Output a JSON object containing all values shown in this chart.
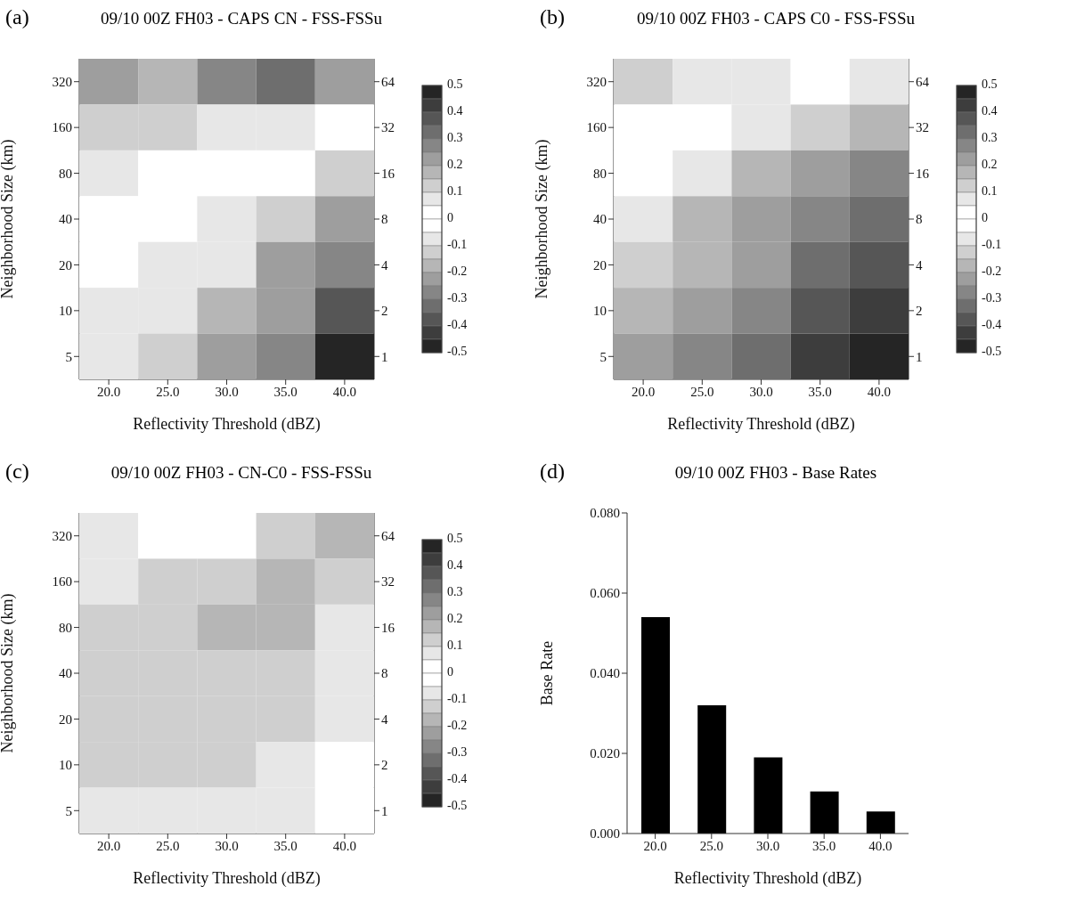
{
  "chart_data": [
    {
      "type": "heatmap",
      "annotations": [
        "(a)"
      ],
      "title": "09/10 00Z FH03 - CAPS CN - FSS-FSSu",
      "xlabel": "Reflectivity Threshold (dBZ)",
      "ylabel": "Neighborhood Size (km)",
      "categories": [
        "20.0",
        "25.0",
        "30.0",
        "35.0",
        "40.0"
      ],
      "y_categories": [
        "320",
        "160",
        "80",
        "40",
        "20",
        "10",
        "5"
      ],
      "y2_categories": [
        "64",
        "32",
        "16",
        "8",
        "4",
        "2",
        "1"
      ],
      "cells": [
        [
          0.22,
          0.2,
          0.25,
          0.3,
          0.22
        ],
        [
          0.13,
          0.12,
          0.08,
          0.06,
          -0.02
        ],
        [
          0.08,
          0.04,
          0.01,
          -0.04,
          -0.12
        ],
        [
          0.02,
          -0.01,
          -0.06,
          -0.12,
          -0.23
        ],
        [
          -0.03,
          -0.06,
          -0.1,
          -0.2,
          -0.3
        ],
        [
          -0.07,
          -0.1,
          -0.15,
          -0.25,
          -0.38
        ],
        [
          -0.08,
          -0.13,
          -0.2,
          -0.3,
          -0.45
        ]
      ],
      "clim": [
        -0.5,
        0.5
      ],
      "cticks": [
        0.5,
        0.4,
        0.3,
        0.2,
        0.1,
        0,
        -0.1,
        -0.2,
        -0.3,
        -0.4,
        -0.5
      ]
    },
    {
      "type": "heatmap",
      "annotations": [
        "(b)"
      ],
      "title": "09/10 00Z FH03 - CAPS C0 - FSS-FSSu",
      "xlabel": "Reflectivity Threshold (dBZ)",
      "ylabel": "Neighborhood Size (km)",
      "categories": [
        "20.0",
        "25.0",
        "30.0",
        "35.0",
        "40.0"
      ],
      "y_categories": [
        "320",
        "160",
        "80",
        "40",
        "20",
        "10",
        "5"
      ],
      "y2_categories": [
        "64",
        "32",
        "16",
        "8",
        "4",
        "2",
        "1"
      ],
      "cells": [
        [
          0.12,
          0.08,
          0.05,
          0.0,
          -0.06
        ],
        [
          0.03,
          -0.02,
          -0.06,
          -0.12,
          -0.18
        ],
        [
          -0.05,
          -0.1,
          -0.15,
          -0.2,
          -0.26
        ],
        [
          -0.1,
          -0.16,
          -0.2,
          -0.27,
          -0.33
        ],
        [
          -0.14,
          -0.19,
          -0.25,
          -0.32,
          -0.38
        ],
        [
          -0.17,
          -0.22,
          -0.3,
          -0.36,
          -0.43
        ],
        [
          -0.2,
          -0.27,
          -0.33,
          -0.4,
          -0.48
        ]
      ],
      "clim": [
        -0.5,
        0.5
      ],
      "cticks": [
        0.5,
        0.4,
        0.3,
        0.2,
        0.1,
        0,
        -0.1,
        -0.2,
        -0.3,
        -0.4,
        -0.5
      ]
    },
    {
      "type": "heatmap",
      "annotations": [
        "(c)"
      ],
      "title": "09/10 00Z FH03 - CN-C0 - FSS-FSSu",
      "xlabel": "Reflectivity Threshold (dBZ)",
      "ylabel": "Neighborhood Size (km)",
      "categories": [
        "20.0",
        "25.0",
        "30.0",
        "35.0",
        "40.0"
      ],
      "y_categories": [
        "320",
        "160",
        "80",
        "40",
        "20",
        "10",
        "5"
      ],
      "y2_categories": [
        "64",
        "32",
        "16",
        "8",
        "4",
        "2",
        "1"
      ],
      "cells": [
        [
          0.08,
          0.04,
          0.04,
          0.11,
          0.15
        ],
        [
          0.1,
          0.13,
          0.12,
          0.17,
          0.13
        ],
        [
          0.13,
          0.14,
          0.15,
          0.17,
          0.1
        ],
        [
          0.12,
          0.14,
          0.14,
          0.14,
          0.08
        ],
        [
          0.12,
          0.13,
          0.13,
          0.11,
          0.06
        ],
        [
          0.12,
          0.12,
          0.12,
          0.09,
          0.04
        ],
        [
          0.09,
          0.09,
          0.1,
          0.06,
          0.02
        ]
      ],
      "clim": [
        -0.5,
        0.5
      ],
      "cticks": [
        0.5,
        0.4,
        0.3,
        0.2,
        0.1,
        0,
        -0.1,
        -0.2,
        -0.3,
        -0.4,
        -0.5
      ]
    },
    {
      "type": "bar",
      "annotations": [
        "(d)"
      ],
      "title": "09/10 00Z FH03 - Base Rates",
      "xlabel": "Reflectivity Threshold (dBZ)",
      "ylabel": "Base Rate",
      "categories": [
        "20.0",
        "25.0",
        "30.0",
        "35.0",
        "40.0"
      ],
      "values": [
        0.054,
        0.032,
        0.019,
        0.0105,
        0.0055
      ],
      "color": "#000000",
      "ylim": [
        0,
        0.08
      ],
      "yticks": [
        {
          "value": 0,
          "label": "0.000"
        },
        {
          "value": 0.02,
          "label": "0.020"
        },
        {
          "value": 0.04,
          "label": "0.040"
        },
        {
          "value": 0.06,
          "label": "0.060"
        },
        {
          "value": 0.08,
          "label": "0.080"
        }
      ]
    }
  ]
}
